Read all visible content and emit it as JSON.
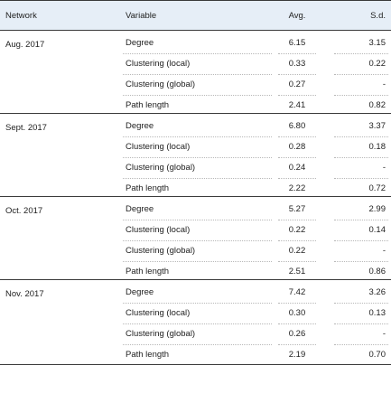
{
  "header": {
    "network": "Network",
    "variable": "Variable",
    "avg": "Avg.",
    "sd": "S.d."
  },
  "groups": [
    {
      "network": "Aug. 2017",
      "rows": [
        {
          "variable": "Degree",
          "avg": "6.15",
          "sd": "3.15"
        },
        {
          "variable": "Clustering (local)",
          "avg": "0.33",
          "sd": "0.22"
        },
        {
          "variable": "Clustering (global)",
          "avg": "0.27",
          "sd": "-"
        },
        {
          "variable": "Path length",
          "avg": "2.41",
          "sd": "0.82"
        }
      ]
    },
    {
      "network": "Sept. 2017",
      "rows": [
        {
          "variable": "Degree",
          "avg": "6.80",
          "sd": "3.37"
        },
        {
          "variable": "Clustering (local)",
          "avg": "0.28",
          "sd": "0.18"
        },
        {
          "variable": "Clustering (global)",
          "avg": "0.24",
          "sd": "-"
        },
        {
          "variable": "Path length",
          "avg": "2.22",
          "sd": "0.72"
        }
      ]
    },
    {
      "network": "Oct. 2017",
      "rows": [
        {
          "variable": "Degree",
          "avg": "5.27",
          "sd": "2.99"
        },
        {
          "variable": "Clustering (local)",
          "avg": "0.22",
          "sd": "0.14"
        },
        {
          "variable": "Clustering (global)",
          "avg": "0.22",
          "sd": "-"
        },
        {
          "variable": "Path length",
          "avg": "2.51",
          "sd": "0.86"
        }
      ]
    },
    {
      "network": "Nov. 2017",
      "rows": [
        {
          "variable": "Degree",
          "avg": "7.42",
          "sd": "3.26"
        },
        {
          "variable": "Clustering (local)",
          "avg": "0.30",
          "sd": "0.13"
        },
        {
          "variable": "Clustering (global)",
          "avg": "0.26",
          "sd": "-"
        },
        {
          "variable": "Path length",
          "avg": "2.19",
          "sd": "0.70"
        }
      ]
    }
  ]
}
